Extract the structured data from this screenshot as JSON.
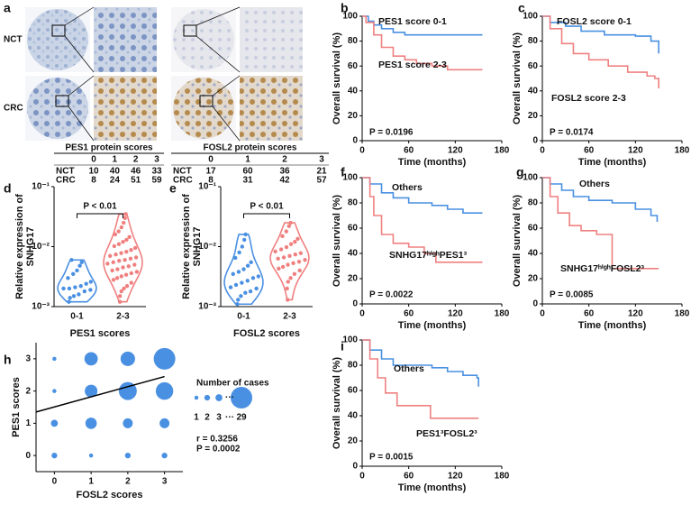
{
  "panel_labels": [
    "a",
    "b",
    "c",
    "d",
    "e",
    "f",
    "g",
    "h",
    "i"
  ],
  "ihc": {
    "row_labels": [
      "NCT",
      "CRC"
    ]
  },
  "tables": [
    {
      "title": "PES1 protein scores",
      "columns": [
        "0",
        "1",
        "2",
        "3"
      ],
      "rows": [
        {
          "label": "NCT",
          "values": [
            10,
            40,
            46,
            33
          ]
        },
        {
          "label": "CRC",
          "values": [
            8,
            24,
            51,
            59
          ]
        }
      ]
    },
    {
      "title": "FOSL2 protein scores",
      "columns": [
        "0",
        "1",
        "2",
        "3"
      ],
      "rows": [
        {
          "label": "NCT",
          "values": [
            17,
            60,
            36,
            21
          ]
        },
        {
          "label": "CRC",
          "values": [
            8,
            31,
            42,
            57
          ]
        }
      ]
    }
  ],
  "chart_data": [
    {
      "type": "survival",
      "ylabel": "Overall survival (%)",
      "xlabel": "Time (months)",
      "xlim": [
        0,
        180
      ],
      "xticks": [
        0,
        60,
        120,
        180
      ],
      "ylim": [
        0,
        100
      ],
      "yticks": [
        0,
        20,
        40,
        60,
        80,
        100
      ],
      "annotation": "P = 0.0196",
      "series": [
        {
          "name": "PES1 score 0-1",
          "color": "#4a90e2",
          "x": [
            0,
            8,
            8,
            15,
            15,
            25,
            25,
            40,
            40,
            55,
            55,
            155
          ],
          "values": [
            100,
            100,
            96,
            96,
            93,
            93,
            90,
            90,
            87,
            87,
            85,
            85
          ]
        },
        {
          "name": "PES1 score 2-3",
          "color": "#f08080",
          "x": [
            0,
            5,
            5,
            15,
            15,
            25,
            25,
            40,
            40,
            55,
            55,
            70,
            70,
            90,
            90,
            110,
            110,
            155
          ],
          "values": [
            100,
            100,
            95,
            95,
            85,
            85,
            75,
            75,
            68,
            68,
            65,
            65,
            62,
            62,
            60,
            60,
            57,
            57
          ]
        }
      ]
    },
    {
      "type": "survival",
      "ylabel": "Overall survival (%)",
      "xlabel": "Time (months)",
      "xlim": [
        0,
        180
      ],
      "xticks": [
        0,
        60,
        120,
        180
      ],
      "ylim": [
        0,
        100
      ],
      "yticks": [
        0,
        20,
        40,
        60,
        80,
        100
      ],
      "annotation": "P = 0.0174",
      "series": [
        {
          "name": "FOSL2 score 0-1",
          "color": "#4a90e2",
          "x": [
            0,
            10,
            10,
            30,
            30,
            50,
            50,
            80,
            80,
            120,
            120,
            140,
            140,
            150,
            150
          ],
          "values": [
            100,
            100,
            95,
            95,
            92,
            92,
            88,
            88,
            85,
            85,
            84,
            84,
            80,
            80,
            70
          ]
        },
        {
          "name": "FOSL2 score 2-3",
          "color": "#f08080",
          "x": [
            0,
            10,
            10,
            25,
            25,
            40,
            40,
            60,
            60,
            85,
            85,
            110,
            110,
            135,
            135,
            145,
            145,
            150,
            150
          ],
          "values": [
            100,
            100,
            90,
            90,
            78,
            78,
            70,
            70,
            65,
            65,
            60,
            60,
            55,
            55,
            52,
            52,
            50,
            50,
            42
          ]
        }
      ]
    },
    {
      "type": "violin",
      "ylabel": [
        "Relative expression of",
        "SNHG17"
      ],
      "xlabel": "PES1 scores",
      "categories": [
        "0-1",
        "2-3"
      ],
      "log": true,
      "ylim": [
        0.001,
        0.1
      ],
      "yticks": [
        {
          "value": 0.001,
          "label": "10⁻³"
        },
        {
          "value": 0.01,
          "label": "10⁻²"
        },
        {
          "value": 0.1,
          "label": "10⁻¹"
        }
      ],
      "annotation": "P < 0.01",
      "series": [
        {
          "color": "#4a90e2",
          "values": [
            0.0012,
            0.0014,
            0.0015,
            0.0016,
            0.0018,
            0.0019,
            0.002,
            0.002,
            0.0021,
            0.0022,
            0.0024,
            0.0026,
            0.003,
            0.0035,
            0.004,
            0.0048,
            0.0055,
            0.006
          ]
        },
        {
          "color": "#f08080",
          "values": [
            0.0012,
            0.0015,
            0.0018,
            0.002,
            0.0022,
            0.0025,
            0.0028,
            0.003,
            0.0032,
            0.0034,
            0.0036,
            0.0038,
            0.004,
            0.0042,
            0.0045,
            0.0047,
            0.005,
            0.0052,
            0.0055,
            0.0058,
            0.006,
            0.0063,
            0.0066,
            0.007,
            0.0074,
            0.0078,
            0.0082,
            0.0088,
            0.0095,
            0.0102,
            0.011,
            0.012,
            0.013,
            0.0145,
            0.016,
            0.018,
            0.021,
            0.025,
            0.03,
            0.035
          ]
        }
      ]
    },
    {
      "type": "violin",
      "ylabel": [
        "Relative expression of",
        "SNHG17"
      ],
      "xlabel": "FOSL2 scores",
      "categories": [
        "0-1",
        "2-3"
      ],
      "log": true,
      "ylim": [
        0.001,
        0.1
      ],
      "yticks": [
        {
          "value": 0.001,
          "label": "10⁻³"
        },
        {
          "value": 0.01,
          "label": "10⁻²"
        },
        {
          "value": 0.1,
          "label": "10⁻¹"
        }
      ],
      "annotation": "P < 0.01",
      "series": [
        {
          "color": "#4a90e2",
          "values": [
            0.0011,
            0.0013,
            0.0015,
            0.0017,
            0.0018,
            0.002,
            0.0021,
            0.0023,
            0.0025,
            0.0027,
            0.003,
            0.0032,
            0.0035,
            0.0038,
            0.0042,
            0.0048,
            0.0055,
            0.0065,
            0.008,
            0.01,
            0.013,
            0.016
          ]
        },
        {
          "color": "#f08080",
          "values": [
            0.0013,
            0.002,
            0.0026,
            0.003,
            0.0035,
            0.004,
            0.0043,
            0.0046,
            0.005,
            0.0053,
            0.0056,
            0.006,
            0.0063,
            0.0066,
            0.007,
            0.0074,
            0.0078,
            0.0083,
            0.009,
            0.0098,
            0.011,
            0.012,
            0.0135,
            0.015,
            0.018,
            0.022,
            0.025
          ]
        }
      ]
    },
    {
      "type": "survival",
      "ylabel": "Overall survival (%)",
      "xlabel": "Time (months)",
      "xlim": [
        0,
        180
      ],
      "xticks": [
        0,
        60,
        120,
        180
      ],
      "ylim": [
        0,
        100
      ],
      "yticks": [
        0,
        20,
        40,
        60,
        80,
        100
      ],
      "annotation": "P = 0.0022",
      "series": [
        {
          "name": "Others",
          "color": "#4a90e2",
          "x": [
            0,
            10,
            10,
            25,
            25,
            40,
            40,
            60,
            60,
            90,
            90,
            110,
            110,
            130,
            130,
            155
          ],
          "values": [
            100,
            100,
            95,
            95,
            88,
            88,
            84,
            84,
            80,
            80,
            78,
            78,
            75,
            75,
            72,
            72
          ]
        },
        {
          "name": "SNHG17ʰⁱᵍʰPES1³",
          "color": "#f08080",
          "x": [
            0,
            10,
            10,
            15,
            15,
            25,
            25,
            40,
            40,
            60,
            60,
            80,
            80,
            95,
            95,
            155
          ],
          "values": [
            100,
            100,
            85,
            85,
            70,
            70,
            55,
            55,
            48,
            48,
            45,
            45,
            40,
            40,
            33,
            33
          ]
        }
      ]
    },
    {
      "type": "survival",
      "ylabel": "Overall survival (%)",
      "xlabel": "Time (months)",
      "xlim": [
        0,
        180
      ],
      "xticks": [
        0,
        60,
        120,
        180
      ],
      "ylim": [
        0,
        100
      ],
      "yticks": [
        0,
        20,
        40,
        60,
        80,
        100
      ],
      "annotation": "P = 0.0085",
      "series": [
        {
          "name": "Others",
          "color": "#4a90e2",
          "x": [
            0,
            10,
            10,
            25,
            25,
            40,
            40,
            60,
            60,
            90,
            90,
            120,
            120,
            140,
            140,
            148,
            148
          ],
          "values": [
            100,
            100,
            95,
            95,
            90,
            90,
            85,
            85,
            82,
            82,
            80,
            80,
            75,
            75,
            70,
            70,
            65
          ]
        },
        {
          "name": "SNHG17ʰⁱᵍʰFOSL2³",
          "color": "#f08080",
          "x": [
            0,
            10,
            10,
            20,
            20,
            35,
            35,
            50,
            50,
            70,
            70,
            90,
            90,
            150
          ],
          "values": [
            100,
            100,
            85,
            85,
            72,
            72,
            62,
            62,
            58,
            58,
            55,
            55,
            28,
            28
          ]
        }
      ]
    },
    {
      "type": "bubble",
      "xlabel": "FOSL2 scores",
      "ylabel": "PES1 scores",
      "xlim": [
        -0.5,
        3.5
      ],
      "ylim": [
        -0.5,
        3.5
      ],
      "xticks": [
        0,
        1,
        2,
        3
      ],
      "yticks": [
        0,
        1,
        2,
        3
      ],
      "color": "#4a90e2",
      "x": [
        0,
        1,
        2,
        3,
        0,
        1,
        2,
        3,
        0,
        1,
        2,
        3,
        0,
        1,
        2,
        3
      ],
      "y": [
        0,
        0,
        0,
        0,
        1,
        1,
        1,
        1,
        2,
        2,
        2,
        2,
        3,
        3,
        3,
        3
      ],
      "sizes": [
        2,
        1,
        2,
        2,
        3,
        8,
        6,
        6,
        1,
        10,
        20,
        19,
        1,
        11,
        13,
        29
      ],
      "fit": {
        "x": [
          -0.5,
          3
        ],
        "y": [
          1.35,
          2.45
        ]
      },
      "legend_title": "Number of cases",
      "legend_sizes": [
        1,
        2,
        3,
        29
      ],
      "legend_ellipsis": "···",
      "annotations": [
        "r = 0.3256",
        "P = 0.0002"
      ]
    },
    {
      "type": "survival",
      "ylabel": "Overall survival (%)",
      "xlabel": "Time (months)",
      "xlim": [
        0,
        180
      ],
      "xticks": [
        0,
        60,
        120,
        180
      ],
      "ylim": [
        0,
        100
      ],
      "yticks": [
        0,
        20,
        40,
        60,
        80,
        100
      ],
      "annotation": "P = 0.0015",
      "series": [
        {
          "name": "Others",
          "color": "#4a90e2",
          "x": [
            0,
            10,
            10,
            25,
            25,
            40,
            40,
            90,
            90,
            110,
            110,
            130,
            130,
            148,
            148,
            150,
            150
          ],
          "values": [
            100,
            100,
            92,
            92,
            85,
            85,
            80,
            80,
            78,
            78,
            75,
            75,
            72,
            72,
            70,
            70,
            63
          ]
        },
        {
          "name": "PES1³FOSL2³",
          "color": "#f08080",
          "x": [
            0,
            10,
            10,
            20,
            20,
            30,
            30,
            45,
            45,
            88,
            88,
            150
          ],
          "values": [
            100,
            100,
            85,
            85,
            70,
            70,
            58,
            58,
            48,
            48,
            38,
            38
          ]
        }
      ]
    }
  ]
}
